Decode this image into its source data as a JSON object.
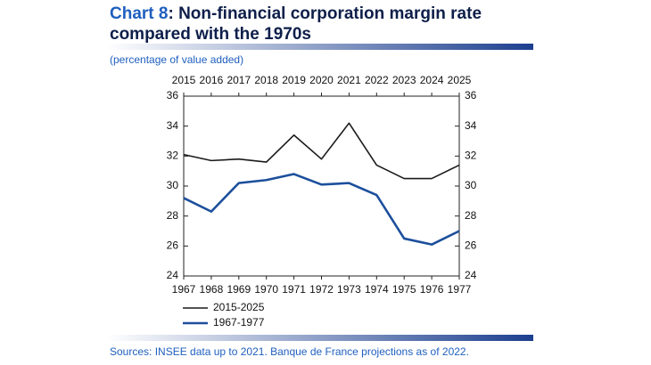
{
  "chart_data": {
    "type": "line",
    "title_prefix": "Chart 8",
    "title": ": Non-financial corporation margin rate compared with the 1970s",
    "subtitle": "(percentage of value added)",
    "source": "Sources: INSEE data up to 2021. Banque de France projections as of 2022.",
    "x": [
      1967,
      1968,
      1969,
      1970,
      1971,
      1972,
      1973,
      1974,
      1975,
      1976,
      1977
    ],
    "xlim": [
      1967,
      1977
    ],
    "x2": [
      2015,
      2016,
      2017,
      2018,
      2019,
      2020,
      2021,
      2022,
      2023,
      2024,
      2025
    ],
    "x2lim": [
      2015,
      2025
    ],
    "ylim": [
      24,
      36
    ],
    "yticks": [
      24,
      26,
      28,
      30,
      32,
      34,
      36
    ],
    "y2lim": [
      24,
      36
    ],
    "y2ticks": [
      24,
      26,
      28,
      30,
      32,
      34,
      36
    ],
    "grid": false,
    "series": [
      {
        "name": "2015-2025",
        "color": "#1a1a1a",
        "xaxis": "x2",
        "values": [
          32.1,
          31.7,
          31.8,
          31.6,
          33.4,
          31.8,
          34.2,
          31.4,
          30.5,
          30.5,
          31.4
        ]
      },
      {
        "name": "1967-1977",
        "color": "#1c4f9c",
        "values": [
          29.2,
          28.3,
          30.2,
          30.4,
          30.8,
          30.1,
          30.2,
          29.4,
          26.5,
          26.1,
          27.0
        ]
      }
    ]
  }
}
